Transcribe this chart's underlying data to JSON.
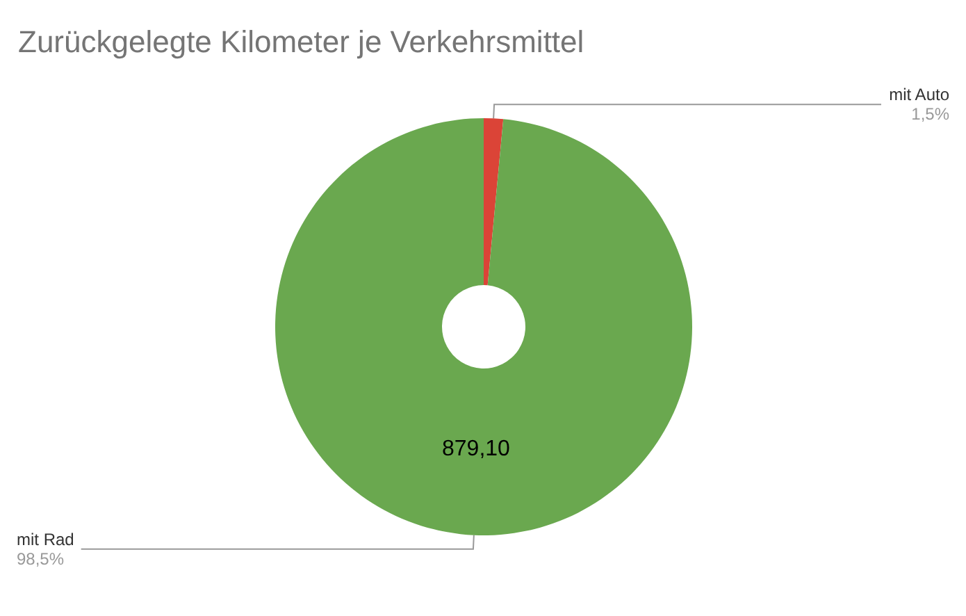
{
  "chart_data": {
    "type": "donut",
    "title": "Zurückgelegte Kilometer je Verkehrsmittel",
    "categories": [
      "mit Auto",
      "mit Rad"
    ],
    "values": [
      1.5,
      98.5
    ],
    "colors": [
      "#db4437",
      "#6aa84f"
    ],
    "value_labels": [
      "1,5%",
      "98,5%"
    ],
    "annotations": [
      "879,10"
    ],
    "legend": false
  }
}
